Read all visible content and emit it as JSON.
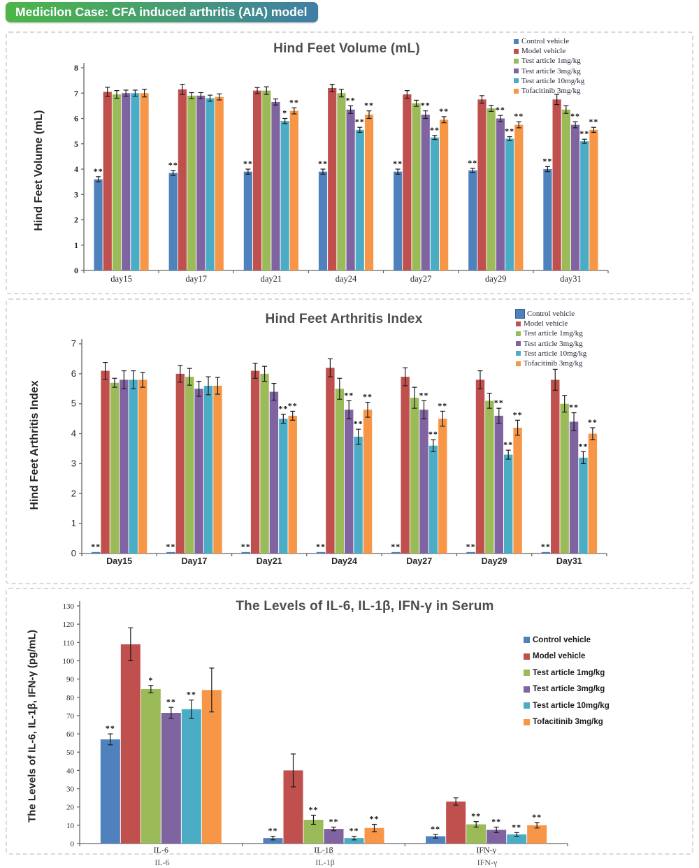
{
  "banner": {
    "text": "Medicilon Case: CFA induced arthritis (AIA) model"
  },
  "cropped_bottom_labels": [
    "IL-6",
    "IL-1β",
    "IFN-γ"
  ],
  "chart_data": [
    {
      "type": "bar",
      "title": "Hind Feet Volume (mL)",
      "ylabel": "Hind Feet Volume (mL)",
      "xlabel": "",
      "ylim": [
        0,
        8
      ],
      "ytick_step": 1,
      "grid": false,
      "legend_position": "top-right",
      "categories": [
        "day15",
        "day17",
        "day21",
        "day24",
        "day27",
        "day29",
        "day31"
      ],
      "series": [
        {
          "name": "Control vehicle",
          "color": "#4F81BD",
          "values": [
            3.6,
            3.85,
            3.9,
            3.9,
            3.9,
            3.95,
            4.0
          ],
          "errors": [
            0.1,
            0.1,
            0.1,
            0.1,
            0.1,
            0.08,
            0.1
          ],
          "sig": [
            "**",
            "**",
            "**",
            "**",
            "**",
            "**",
            "**"
          ]
        },
        {
          "name": "Model vehicle",
          "color": "#C0504D",
          "values": [
            7.05,
            7.15,
            7.1,
            7.2,
            6.95,
            6.75,
            6.75
          ],
          "errors": [
            0.18,
            0.2,
            0.12,
            0.15,
            0.15,
            0.15,
            0.2
          ],
          "sig": [
            "",
            "",
            "",
            "",
            "",
            "",
            ""
          ]
        },
        {
          "name": "Test article 1mg/kg",
          "color": "#9BBB59",
          "values": [
            6.95,
            6.9,
            7.1,
            7.0,
            6.6,
            6.4,
            6.35
          ],
          "errors": [
            0.15,
            0.12,
            0.15,
            0.15,
            0.12,
            0.12,
            0.15
          ],
          "sig": [
            "",
            "",
            "",
            "",
            "",
            "",
            ""
          ]
        },
        {
          "name": "Test article 3mg/kg",
          "color": "#8064A2",
          "values": [
            7.0,
            6.9,
            6.65,
            6.35,
            6.15,
            6.0,
            5.75
          ],
          "errors": [
            0.12,
            0.12,
            0.12,
            0.15,
            0.15,
            0.12,
            0.12
          ],
          "sig": [
            "",
            "",
            "",
            "**",
            "**",
            "**",
            "**"
          ]
        },
        {
          "name": "Test article 10mg/kg",
          "color": "#4BACC6",
          "values": [
            7.0,
            6.8,
            5.9,
            5.55,
            5.25,
            5.2,
            5.1
          ],
          "errors": [
            0.12,
            0.12,
            0.1,
            0.1,
            0.08,
            0.08,
            0.08
          ],
          "sig": [
            "",
            "",
            "*",
            "**",
            "**",
            "**",
            "**"
          ]
        },
        {
          "name": "Tofacitinib 3mg/kg",
          "color": "#F79646",
          "values": [
            7.0,
            6.85,
            6.3,
            6.15,
            5.95,
            5.75,
            5.55
          ],
          "errors": [
            0.15,
            0.12,
            0.12,
            0.15,
            0.12,
            0.12,
            0.1
          ],
          "sig": [
            "",
            "",
            "**",
            "**",
            "**",
            "**",
            "**"
          ]
        }
      ]
    },
    {
      "type": "bar",
      "title": "Hind Feet Arthritis Index",
      "ylabel": "Hind Feet Arthritis Index",
      "xlabel": "",
      "ylim": [
        0,
        7
      ],
      "ytick_step": 1,
      "grid": false,
      "legend_position": "top-right",
      "categories": [
        "Day15",
        "Day17",
        "Day21",
        "Day24",
        "Day27",
        "Day29",
        "Day31"
      ],
      "series": [
        {
          "name": "Control vehicle",
          "color": "#4F81BD",
          "values": [
            0.05,
            0.05,
            0.05,
            0.05,
            0.05,
            0.05,
            0.05
          ],
          "errors": [
            0,
            0,
            0,
            0,
            0,
            0,
            0
          ],
          "sig": [
            "**",
            "**",
            "**",
            "**",
            "**",
            "**",
            "**"
          ]
        },
        {
          "name": "Model vehicle",
          "color": "#C0504D",
          "values": [
            6.1,
            6.0,
            6.1,
            6.2,
            5.9,
            5.8,
            5.8
          ],
          "errors": [
            0.28,
            0.28,
            0.25,
            0.3,
            0.3,
            0.3,
            0.35
          ],
          "sig": [
            "",
            "",
            "",
            "",
            "",
            "",
            ""
          ]
        },
        {
          "name": "Test article 1mg/kg",
          "color": "#9BBB59",
          "values": [
            5.7,
            5.9,
            6.0,
            5.5,
            5.2,
            5.1,
            5.0
          ],
          "errors": [
            0.15,
            0.28,
            0.25,
            0.35,
            0.35,
            0.25,
            0.28
          ],
          "sig": [
            "",
            "",
            "",
            "",
            "",
            "",
            ""
          ]
        },
        {
          "name": "Test article 3mg/kg",
          "color": "#8064A2",
          "values": [
            5.8,
            5.5,
            5.4,
            4.8,
            4.8,
            4.6,
            4.4
          ],
          "errors": [
            0.3,
            0.25,
            0.28,
            0.3,
            0.3,
            0.25,
            0.3
          ],
          "sig": [
            "",
            "",
            "",
            "**",
            "**",
            "**",
            "**"
          ]
        },
        {
          "name": "Test article 10mg/kg",
          "color": "#4BACC6",
          "values": [
            5.8,
            5.6,
            4.5,
            3.9,
            3.6,
            3.3,
            3.2
          ],
          "errors": [
            0.3,
            0.3,
            0.15,
            0.25,
            0.2,
            0.15,
            0.2
          ],
          "sig": [
            "",
            "",
            "**",
            "**",
            "**",
            "**",
            "**"
          ]
        },
        {
          "name": "Tofacitinib 3mg/kg",
          "color": "#F79646",
          "values": [
            5.8,
            5.6,
            4.6,
            4.8,
            4.5,
            4.2,
            4.0
          ],
          "errors": [
            0.25,
            0.28,
            0.15,
            0.25,
            0.25,
            0.25,
            0.2
          ],
          "sig": [
            "",
            "",
            "**",
            "**",
            "**",
            "**",
            "**"
          ]
        }
      ]
    },
    {
      "type": "bar",
      "title": "The Levels of IL-6, IL-1β, IFN-γ in Serum",
      "ylabel": "The Levels of IL-6, IL-1β, IFN-γ  (pg/mL)",
      "xlabel": "",
      "ylim": [
        0,
        130
      ],
      "ytick_step": 10,
      "grid": false,
      "legend_position": "inside-right",
      "categories": [
        "IL-6",
        "IL-1β",
        "IFN-γ"
      ],
      "series": [
        {
          "name": "Control vehicle",
          "color": "#4F81BD",
          "values": [
            57,
            3,
            4
          ],
          "errors": [
            3,
            1,
            1
          ],
          "sig": [
            "**",
            "**",
            "**"
          ]
        },
        {
          "name": "Model vehicle",
          "color": "#C0504D",
          "values": [
            109,
            40,
            23
          ],
          "errors": [
            9,
            9,
            2
          ],
          "sig": [
            "",
            "",
            ""
          ]
        },
        {
          "name": "Test article 1mg/kg",
          "color": "#9BBB59",
          "values": [
            84.5,
            13,
            10.5
          ],
          "errors": [
            2,
            2.5,
            1.5
          ],
          "sig": [
            "*",
            "**",
            "**"
          ]
        },
        {
          "name": "Test article 3mg/kg",
          "color": "#8064A2",
          "values": [
            71.5,
            8,
            7.5
          ],
          "errors": [
            3,
            1,
            1.5
          ],
          "sig": [
            "**",
            "**",
            "**"
          ]
        },
        {
          "name": "Test article 10mg/kg",
          "color": "#4BACC6",
          "values": [
            73.5,
            3,
            5
          ],
          "errors": [
            5,
            1,
            1
          ],
          "sig": [
            "**",
            "**",
            "**"
          ]
        },
        {
          "name": "Tofacitinib 3mg/kg",
          "color": "#F79646",
          "values": [
            84,
            8.5,
            10
          ],
          "errors": [
            12,
            2,
            1.5
          ],
          "sig": [
            "",
            "**",
            "**"
          ]
        }
      ]
    }
  ]
}
